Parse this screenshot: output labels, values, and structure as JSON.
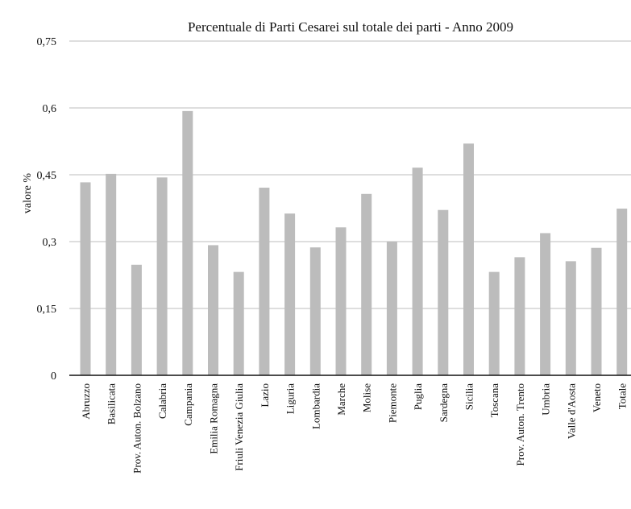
{
  "chart_data": {
    "type": "bar",
    "title": "Percentuale di Parti Cesarei sul totale dei parti - Anno 2009",
    "ylabel": "valore %",
    "xlabel": "",
    "ylim": [
      0,
      0.75
    ],
    "yticks": [
      0,
      0.15,
      0.3,
      0.45,
      0.6,
      0.75
    ],
    "ytick_labels": [
      "0",
      "0,15",
      "0,3",
      "0,45",
      "0,6",
      "0,75"
    ],
    "grid": true,
    "bar_color": "#bcbcbc",
    "categories": [
      "Abruzzo",
      "Basilicata",
      "Prov. Auton. Bolzano",
      "Calabria",
      "Campania",
      "Emilia Romagna",
      "Friuli Venezia Giulia",
      "Lazio",
      "Liguria",
      "Lombardia",
      "Marche",
      "Molise",
      "Piemonte",
      "Puglia",
      "Sardegna",
      "Sicilia",
      "Toscana",
      "Prov. Auton. Trento",
      "Umbria",
      "Valle d'Aosta",
      "Veneto",
      "Totale"
    ],
    "values": [
      0.433,
      0.452,
      0.248,
      0.444,
      0.593,
      0.292,
      0.232,
      0.421,
      0.363,
      0.287,
      0.332,
      0.407,
      0.3,
      0.466,
      0.371,
      0.52,
      0.232,
      0.265,
      0.319,
      0.256,
      0.286,
      0.374
    ]
  }
}
